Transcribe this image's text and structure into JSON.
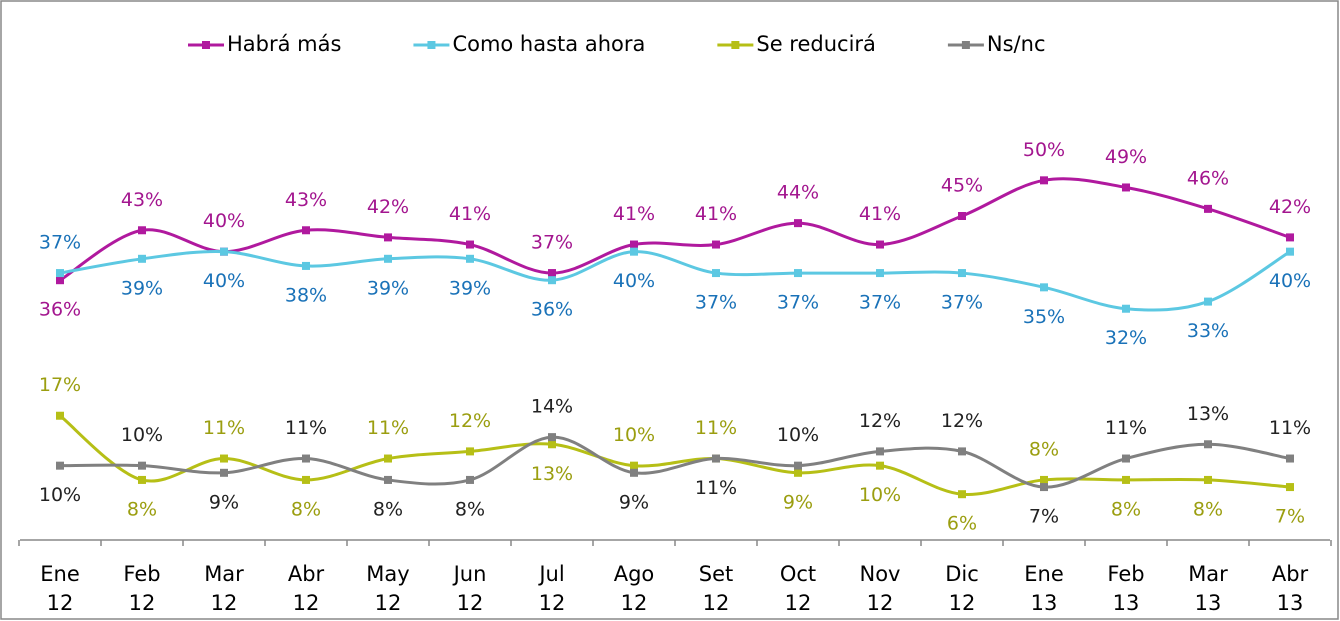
{
  "chart_data": {
    "type": "line",
    "categories": [
      "Ene 12",
      "Feb 12",
      "Mar 12",
      "Abr 12",
      "May 12",
      "Jun 12",
      "Jul 12",
      "Ago 12",
      "Set 12",
      "Oct 12",
      "Nov 12",
      "Dic 12",
      "Ene 13",
      "Feb 13",
      "Mar 13",
      "Abr 13"
    ],
    "ylim": [
      0,
      60
    ],
    "legend": "top",
    "smooth": true,
    "series": [
      {
        "name": "Habrá más",
        "color": "#b0199e",
        "label_color": "#a3168f",
        "values": [
          36,
          43,
          40,
          43,
          42,
          41,
          37,
          41,
          41,
          44,
          41,
          45,
          50,
          49,
          46,
          42
        ],
        "value_labels": [
          "36%",
          "43%",
          "40%",
          "43%",
          "42%",
          "41%",
          "37%",
          "41%",
          "41%",
          "44%",
          "41%",
          "45%",
          "50%",
          "49%",
          "46%",
          "42%"
        ]
      },
      {
        "name": "Como hasta ahora",
        "color": "#5cc8e2",
        "label_color": "#1a72b8",
        "values": [
          37,
          39,
          40,
          38,
          39,
          39,
          36,
          40,
          37,
          37,
          37,
          37,
          35,
          32,
          33,
          40
        ],
        "value_labels": [
          "37%",
          "39%",
          "40%",
          "38%",
          "39%",
          "39%",
          "36%",
          "40%",
          "37%",
          "37%",
          "37%",
          "37%",
          "35%",
          "32%",
          "33%",
          "40%"
        ]
      },
      {
        "name": "Se reducirá",
        "color": "#b6bf16",
        "label_color": "#9b9e10",
        "values": [
          17,
          8,
          11,
          8,
          11,
          12,
          13,
          10,
          11,
          9,
          10,
          6,
          8,
          8,
          8,
          7
        ],
        "value_labels": [
          "17%",
          "8%",
          "11%",
          "8%",
          "11%",
          "12%",
          "13%",
          "10%",
          "11%",
          "9%",
          "10%",
          "6%",
          "8%",
          "8%",
          "8%",
          "7%"
        ]
      },
      {
        "name": "Ns/nc",
        "color": "#808080",
        "label_color": "#222222",
        "values": [
          10,
          10,
          9,
          11,
          8,
          8,
          14,
          9,
          11,
          10,
          12,
          12,
          7,
          11,
          13,
          11
        ],
        "value_labels": [
          "10%",
          "10%",
          "9%",
          "11%",
          "8%",
          "8%",
          "14%",
          "9%",
          "11%",
          "10%",
          "12%",
          "12%",
          "7%",
          "11%",
          "13%",
          "11%"
        ]
      }
    ]
  }
}
